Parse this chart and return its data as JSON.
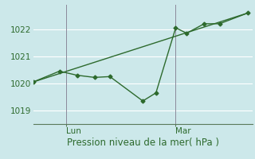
{
  "background_color": "#cce8ea",
  "plot_bg_color": "#cce8ea",
  "grid_color": "#ffffff",
  "line_color": "#2d6a2d",
  "xlabel": "Pression niveau de la mer( hPa )",
  "xlim": [
    0,
    10.0
  ],
  "ylim": [
    1018.5,
    1022.9
  ],
  "yticks": [
    1019,
    1020,
    1021,
    1022
  ],
  "xtick_positions": [
    1.5,
    6.5
  ],
  "xtick_labels": [
    "Lun",
    "Mar"
  ],
  "line1_x": [
    0.0,
    1.2,
    2.0,
    2.8,
    3.5,
    5.0,
    5.6,
    6.5,
    7.0,
    7.8,
    8.5,
    9.8
  ],
  "line1_y": [
    1020.05,
    1020.45,
    1020.3,
    1020.22,
    1020.25,
    1019.35,
    1019.65,
    1022.05,
    1021.85,
    1022.2,
    1022.2,
    1022.6
  ],
  "line2_x": [
    0.0,
    9.8
  ],
  "line2_y": [
    1020.05,
    1022.6
  ],
  "marker_style": "D",
  "marker_size": 2.5,
  "linewidth": 1.0,
  "font_size_label": 8.5,
  "font_size_tick": 7.5,
  "day_line_color": "#888899",
  "spine_color": "#5a7a5a"
}
